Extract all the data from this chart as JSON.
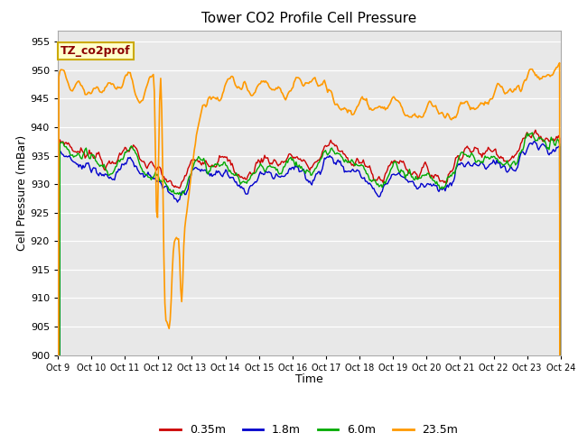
{
  "title": "Tower CO2 Profile Cell Pressure",
  "xlabel": "Time",
  "ylabel": "Cell Pressure (mBar)",
  "ylim": [
    900,
    957
  ],
  "yticks": [
    900,
    905,
    910,
    915,
    920,
    925,
    930,
    935,
    940,
    945,
    950,
    955
  ],
  "x_labels": [
    "Oct 9",
    "Oct 10",
    "Oct 11",
    "Oct 12",
    "Oct 13",
    "Oct 14",
    "Oct 15",
    "Oct 16",
    "Oct 17",
    "Oct 18",
    "Oct 19",
    "Oct 20",
    "Oct 21",
    "Oct 22",
    "Oct 23",
    "Oct 24"
  ],
  "colors": {
    "0.35m": "#cc0000",
    "1.8m": "#0000cc",
    "6.0m": "#00aa00",
    "23.5m": "#ff9900"
  },
  "legend_label": "TZ_co2prof",
  "plot_bg": "#e8e8e8"
}
